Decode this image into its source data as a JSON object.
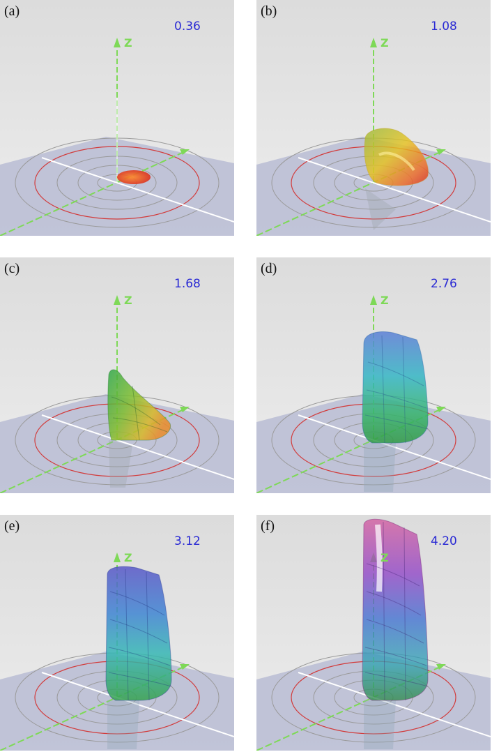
{
  "colors": {
    "background": "#e6e6e6",
    "plane": "#b9bcd4",
    "axis_green": "#7ed957",
    "axis_white": "#ffffff",
    "highlight_ring": "#d23b3b",
    "grey_ring": "#9a9a9a",
    "value_text": "#2a2ad4"
  },
  "panels": [
    {
      "letter": "(a)",
      "value": "0.36",
      "axis_label": "Z",
      "solid": "small-red-cap"
    },
    {
      "letter": "(b)",
      "value": "1.08",
      "axis_label": "Z",
      "solid": "yellow-red-lobe"
    },
    {
      "letter": "(c)",
      "value": "1.68",
      "axis_label": "Z",
      "solid": "green-yellow-lobe"
    },
    {
      "letter": "(d)",
      "value": "2.76",
      "axis_label": "Z",
      "solid": "blue-green-cylinder-segment"
    },
    {
      "letter": "(e)",
      "value": "3.12",
      "axis_label": "Z",
      "solid": "blue-cyan-green-cylinder-segment"
    },
    {
      "letter": "(f)",
      "value": "4.20",
      "axis_label": "Z",
      "solid": "magenta-blue-green-cylinder-segment"
    }
  ]
}
